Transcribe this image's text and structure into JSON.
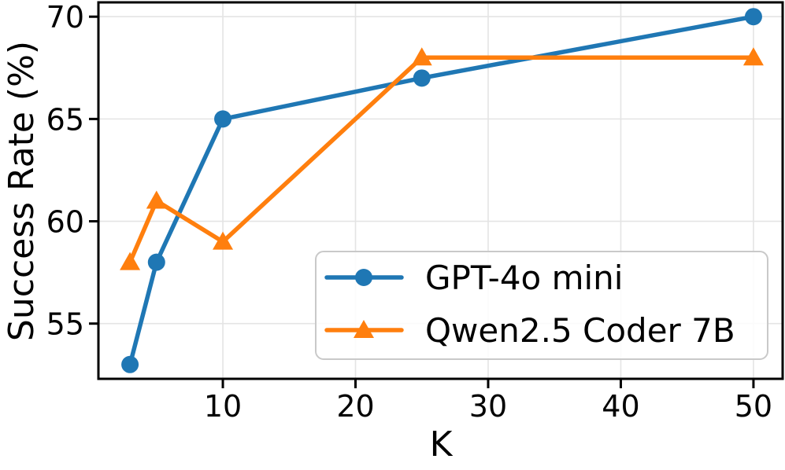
{
  "chart_data": {
    "type": "line",
    "title": "",
    "xlabel": "K",
    "ylabel": "Success Rate (%)",
    "x": [
      3,
      5,
      10,
      25,
      50
    ],
    "series": [
      {
        "name": "GPT-4o mini",
        "values": [
          53,
          58,
          65,
          67,
          70
        ],
        "color": "#1f77b4",
        "marker": "circle"
      },
      {
        "name": "Qwen2.5 Coder 7B",
        "values": [
          58,
          61,
          59,
          68,
          68
        ],
        "color": "#ff7f0e",
        "marker": "triangle"
      }
    ],
    "xticks": [
      10,
      20,
      30,
      40,
      50
    ],
    "yticks": [
      55,
      60,
      65,
      70
    ],
    "xlim": [
      0.62,
      52.2
    ],
    "ylim": [
      52.3,
      70.7
    ],
    "grid": true,
    "legend_position": "lower right"
  },
  "style": {
    "grid_color": "#e4e4e4",
    "spine_color": "#000000",
    "tick_color": "#000000",
    "legend_border_color": "#c9c9c9",
    "legend_bg_color": "rgba(255,255,255,0.85)",
    "background_color": "#ffffff"
  }
}
